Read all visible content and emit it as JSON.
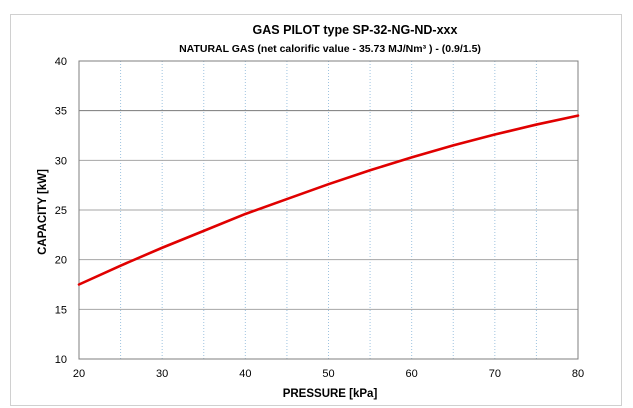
{
  "chart_data": {
    "type": "line",
    "title": "GAS PILOT type SP-32-NG-ND-xxx",
    "subtitle": "NATURAL GAS  (net calorific value - 35.73 MJ/Nm³ ) - (0.9/1.5)",
    "xlabel": "PRESSURE  [kPa]",
    "ylabel": "CAPACITY  [kW]",
    "xlim": [
      20,
      80
    ],
    "ylim": [
      10,
      40
    ],
    "x_ticks": [
      "20",
      "30",
      "40",
      "50",
      "60",
      "70",
      "80"
    ],
    "y_ticks": [
      "10",
      "15",
      "20",
      "25",
      "30",
      "35",
      "40"
    ],
    "grid": true,
    "series": [
      {
        "color": "#e00000",
        "x": [
          20,
          25,
          30,
          35,
          40,
          45,
          50,
          55,
          60,
          65,
          70,
          75,
          80
        ],
        "y": [
          17.5,
          19.4,
          21.2,
          22.9,
          24.6,
          26.1,
          27.6,
          29.0,
          30.3,
          31.5,
          32.6,
          33.6,
          34.5
        ]
      }
    ]
  }
}
